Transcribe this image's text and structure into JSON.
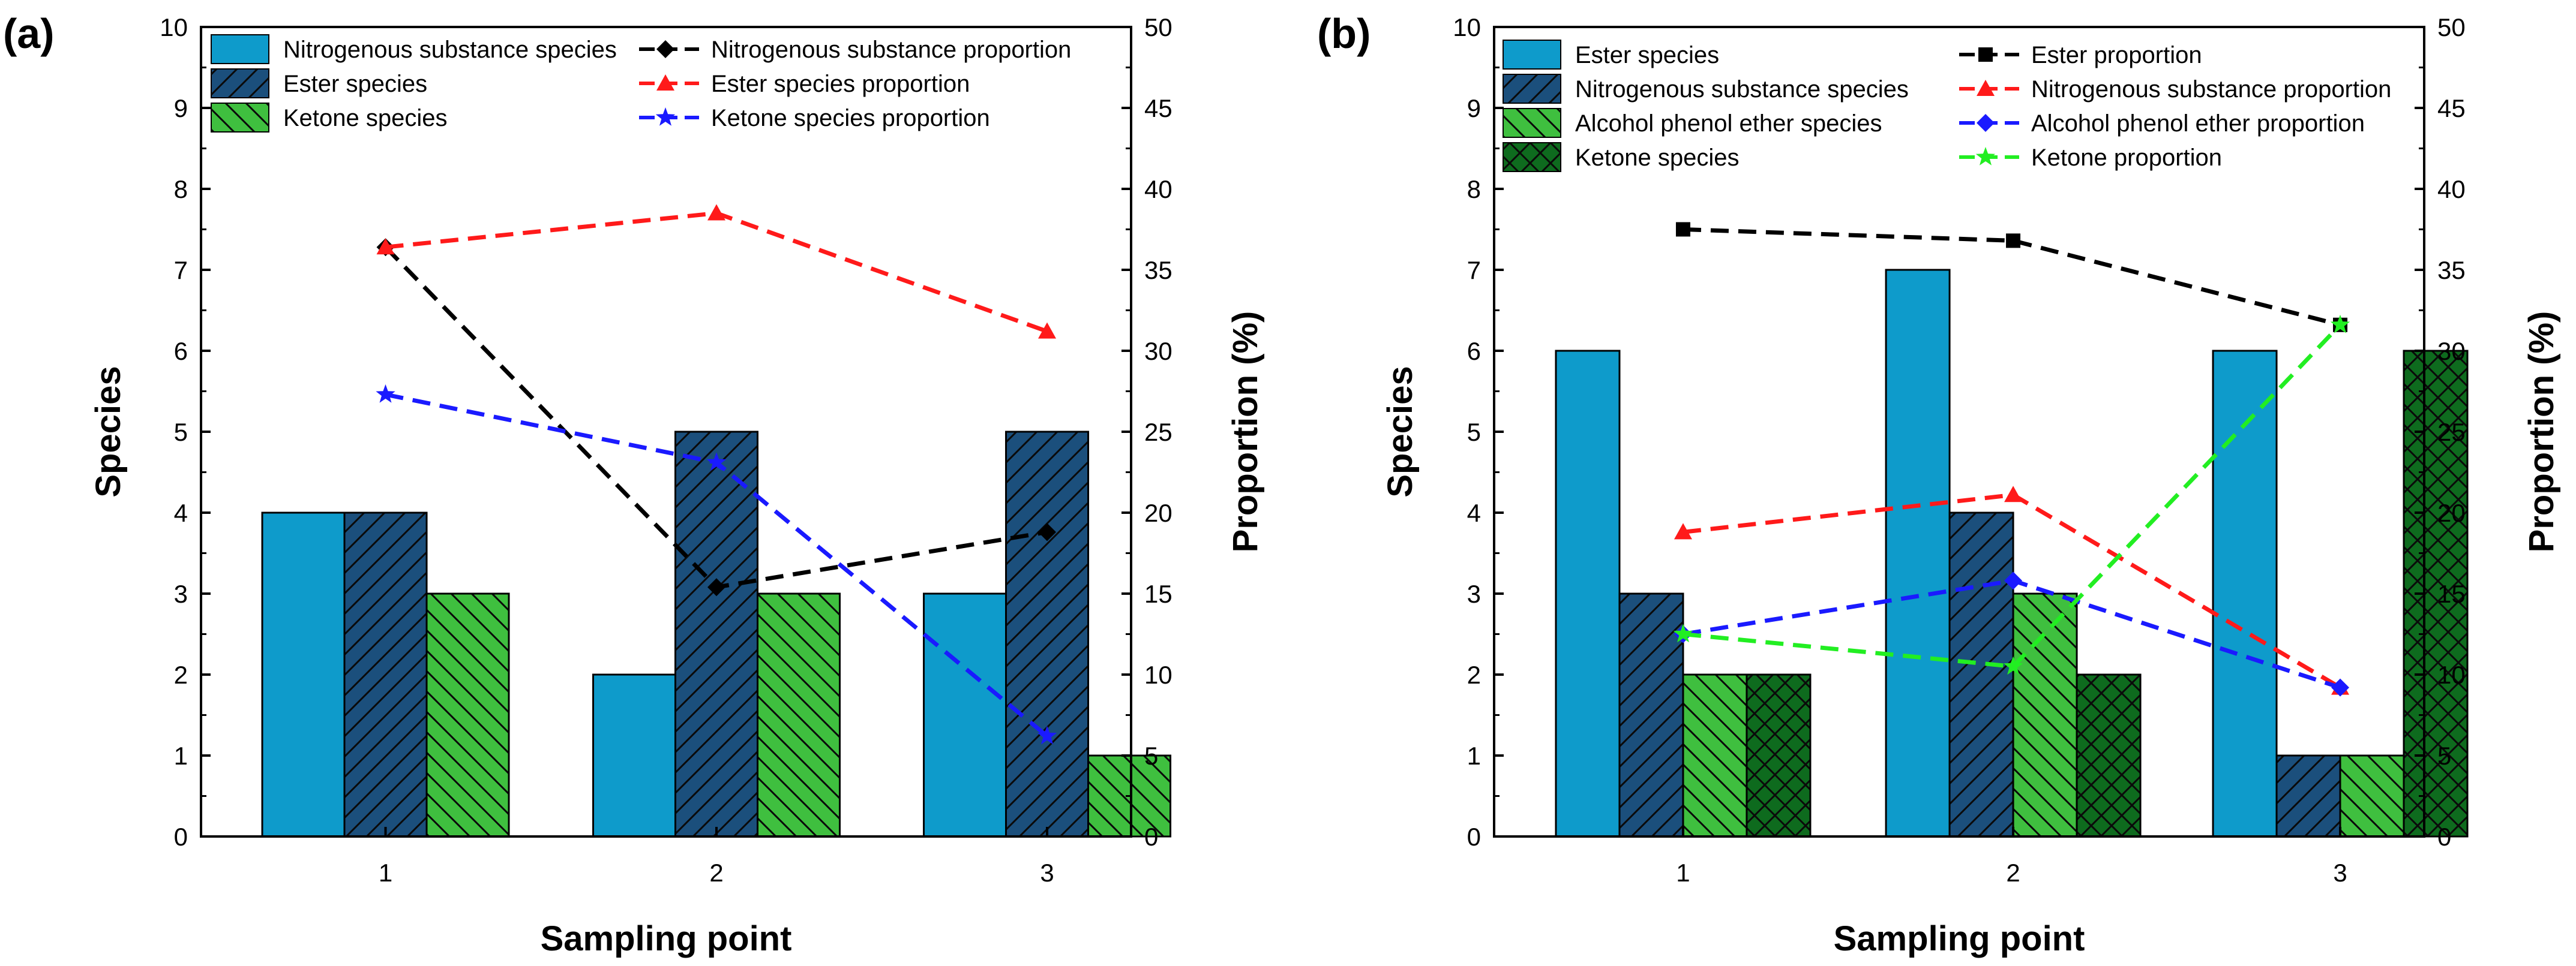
{
  "chart_data": [
    {
      "panel": "(a)",
      "type": "bar",
      "xlabel": "Sampling point",
      "ylabel": "Species",
      "y2label": "Proportion (%)",
      "categories": [
        "1",
        "2",
        "3"
      ],
      "ylim": [
        0,
        10
      ],
      "y2lim": [
        0,
        50
      ],
      "yticks": [
        "0",
        "1",
        "2",
        "3",
        "4",
        "5",
        "6",
        "7",
        "8",
        "9",
        "10"
      ],
      "y2ticks": [
        "0",
        "5",
        "10",
        "15",
        "20",
        "25",
        "30",
        "35",
        "40",
        "45",
        "50"
      ],
      "bar_series": [
        {
          "name": "Nitrogenous substance species",
          "values": [
            4,
            2,
            3
          ],
          "color": "#0E9BCB",
          "pattern": "none"
        },
        {
          "name": "Ester species",
          "values": [
            4,
            5,
            5
          ],
          "color": "#1B4F7C",
          "pattern": "diag-fwd"
        },
        {
          "name": "Ketone species",
          "values": [
            3,
            3,
            1
          ],
          "color": "#3FBF3F",
          "pattern": "diag-back"
        }
      ],
      "line_series": [
        {
          "name": "Nitrogenous substance proportion",
          "values": [
            36.4,
            15.4,
            18.8
          ],
          "color": "#000000",
          "marker": "diamond"
        },
        {
          "name": "Ester species proportion",
          "values": [
            36.4,
            38.5,
            31.2
          ],
          "color": "#FF1A1A",
          "marker": "triangle"
        },
        {
          "name": "Ketone species proportion",
          "values": [
            27.3,
            23.1,
            6.2
          ],
          "color": "#1A1AFF",
          "marker": "star"
        }
      ]
    },
    {
      "panel": "(b)",
      "type": "bar",
      "xlabel": "Sampling point",
      "ylabel": "Species",
      "y2label": "Proportion (%)",
      "categories": [
        "1",
        "2",
        "3"
      ],
      "ylim": [
        0,
        10
      ],
      "y2lim": [
        0,
        50
      ],
      "yticks": [
        "0",
        "1",
        "2",
        "3",
        "4",
        "5",
        "6",
        "7",
        "8",
        "9",
        "10"
      ],
      "y2ticks": [
        "0",
        "5",
        "10",
        "15",
        "20",
        "25",
        "30",
        "35",
        "40",
        "45",
        "50"
      ],
      "bar_series": [
        {
          "name": "Ester species",
          "values": [
            6,
            7,
            6
          ],
          "color": "#0E9BCB",
          "pattern": "none"
        },
        {
          "name": "Nitrogenous substance species",
          "values": [
            3,
            4,
            1
          ],
          "color": "#1B4F7C",
          "pattern": "diag-fwd"
        },
        {
          "name": "Alcohol phenol ether species",
          "values": [
            2,
            3,
            1
          ],
          "color": "#3FBF3F",
          "pattern": "diag-back"
        },
        {
          "name": "Ketone species",
          "values": [
            2,
            2,
            6
          ],
          "color": "#0E6B1E",
          "pattern": "cross"
        }
      ],
      "line_series": [
        {
          "name": "Ester proportion",
          "values": [
            37.5,
            36.8,
            31.6
          ],
          "color": "#000000",
          "marker": "square"
        },
        {
          "name": "Nitrogenous substance proportion",
          "values": [
            18.8,
            21.1,
            9.2
          ],
          "color": "#FF1A1A",
          "marker": "triangle"
        },
        {
          "name": "Alcohol phenol ether proportion",
          "values": [
            12.5,
            15.8,
            9.2
          ],
          "color": "#1A1AFF",
          "marker": "diamond"
        },
        {
          "name": "Ketone proportion",
          "values": [
            12.5,
            10.5,
            31.6
          ],
          "color": "#22EE22",
          "marker": "star"
        }
      ]
    }
  ]
}
